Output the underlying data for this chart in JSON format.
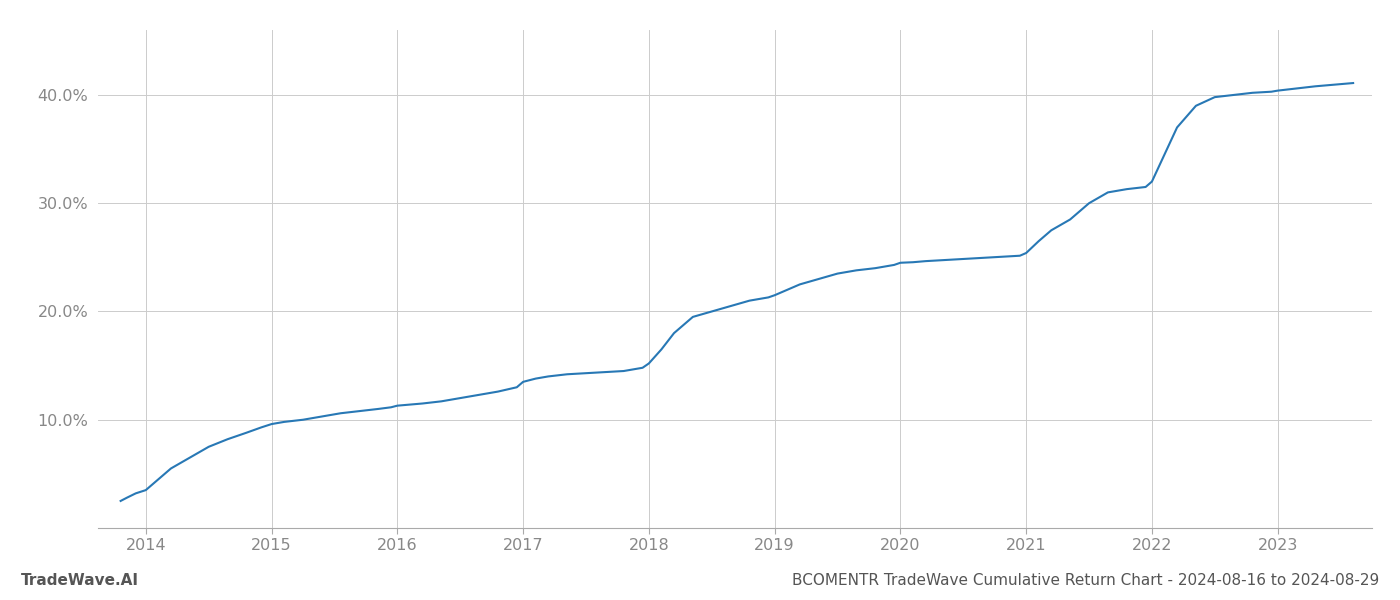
{
  "title": "BCOMENTR TradeWave Cumulative Return Chart - 2024-08-16 to 2024-08-29",
  "watermark": "TradeWave.AI",
  "line_color": "#2878b5",
  "background_color": "#ffffff",
  "grid_color": "#cccccc",
  "x_values": [
    2013.8,
    2013.85,
    2013.92,
    2014.0,
    2014.1,
    2014.2,
    2014.35,
    2014.5,
    2014.65,
    2014.8,
    2014.92,
    2015.0,
    2015.1,
    2015.25,
    2015.4,
    2015.55,
    2015.7,
    2015.85,
    2015.95,
    2016.0,
    2016.1,
    2016.2,
    2016.35,
    2016.5,
    2016.65,
    2016.8,
    2016.95,
    2017.0,
    2017.1,
    2017.2,
    2017.35,
    2017.5,
    2017.65,
    2017.8,
    2017.95,
    2018.0,
    2018.1,
    2018.2,
    2018.35,
    2018.5,
    2018.65,
    2018.8,
    2018.95,
    2019.0,
    2019.1,
    2019.2,
    2019.35,
    2019.5,
    2019.65,
    2019.8,
    2019.95,
    2020.0,
    2020.1,
    2020.2,
    2020.35,
    2020.5,
    2020.65,
    2020.8,
    2020.95,
    2021.0,
    2021.1,
    2021.2,
    2021.35,
    2021.5,
    2021.65,
    2021.8,
    2021.95,
    2022.0,
    2022.1,
    2022.2,
    2022.35,
    2022.5,
    2022.65,
    2022.8,
    2022.95,
    2023.0,
    2023.15,
    2023.3,
    2023.45,
    2023.6
  ],
  "y_values": [
    2.5,
    2.8,
    3.2,
    3.5,
    4.5,
    5.5,
    6.5,
    7.5,
    8.2,
    8.8,
    9.3,
    9.6,
    9.8,
    10.0,
    10.3,
    10.6,
    10.8,
    11.0,
    11.15,
    11.3,
    11.4,
    11.5,
    11.7,
    12.0,
    12.3,
    12.6,
    13.0,
    13.5,
    13.8,
    14.0,
    14.2,
    14.3,
    14.4,
    14.5,
    14.8,
    15.2,
    16.5,
    18.0,
    19.5,
    20.0,
    20.5,
    21.0,
    21.3,
    21.5,
    22.0,
    22.5,
    23.0,
    23.5,
    23.8,
    24.0,
    24.3,
    24.5,
    24.55,
    24.65,
    24.75,
    24.85,
    24.95,
    25.05,
    25.15,
    25.4,
    26.5,
    27.5,
    28.5,
    30.0,
    31.0,
    31.3,
    31.5,
    32.0,
    34.5,
    37.0,
    39.0,
    39.8,
    40.0,
    40.2,
    40.3,
    40.4,
    40.6,
    40.8,
    40.95,
    41.1
  ],
  "xlim": [
    2013.62,
    2023.75
  ],
  "ylim": [
    0,
    46
  ],
  "yticks": [
    10.0,
    20.0,
    30.0,
    40.0
  ],
  "ytick_labels": [
    "10.0%",
    "20.0%",
    "30.0%",
    "40.0%"
  ],
  "xticks": [
    2014,
    2015,
    2016,
    2017,
    2018,
    2019,
    2020,
    2021,
    2022,
    2023
  ],
  "line_width": 1.5,
  "title_fontsize": 11,
  "tick_fontsize": 11.5,
  "watermark_fontsize": 11
}
